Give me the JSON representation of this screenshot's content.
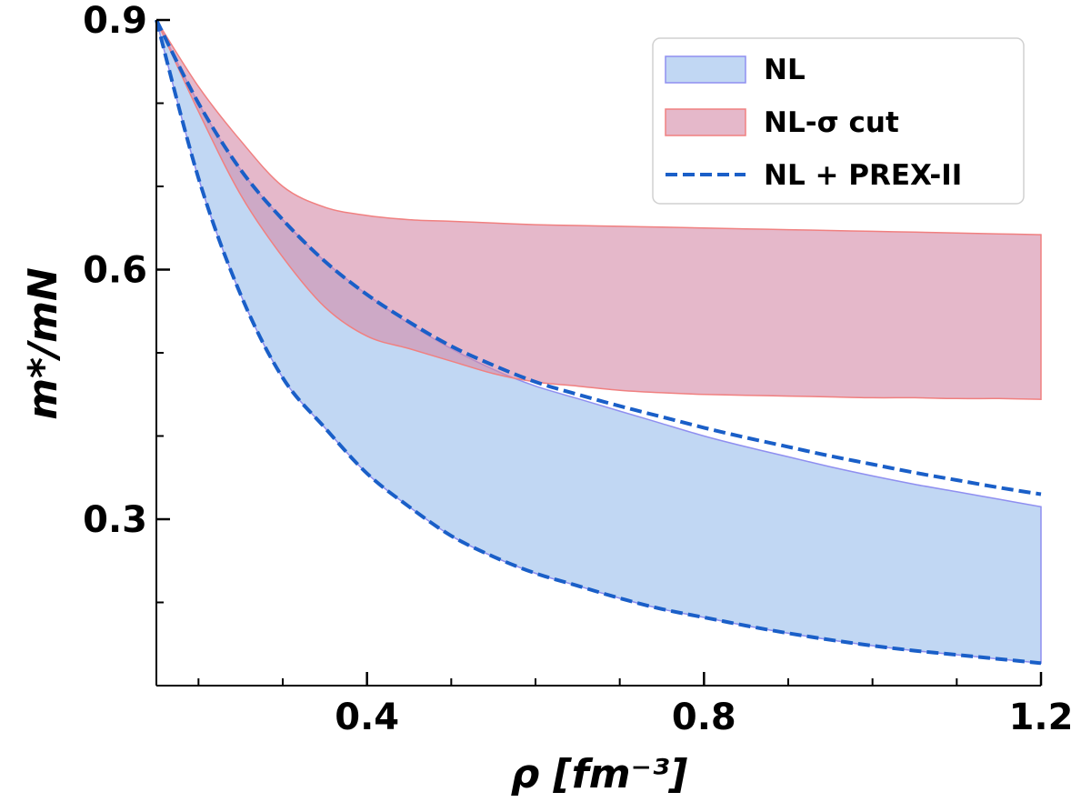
{
  "chart_data": {
    "type": "area",
    "title": "",
    "xlabel": "ρ [fm⁻³]",
    "ylabel": "m*/mN",
    "xlim": [
      0.15,
      1.2
    ],
    "ylim": [
      0.1,
      0.9
    ],
    "x_ticks": [
      0.4,
      0.8,
      1.2
    ],
    "x_tick_labels": [
      "0.4",
      "0.8",
      "1.2"
    ],
    "x_minor_ticks": [
      0.2,
      0.3,
      0.5,
      0.6,
      0.7,
      0.9,
      1.0,
      1.1
    ],
    "y_ticks": [
      0.3,
      0.6,
      0.9
    ],
    "y_tick_labels": [
      "0.3",
      "0.6",
      "0.9"
    ],
    "y_minor_ticks": [
      0.2,
      0.4,
      0.5,
      0.7,
      0.8
    ],
    "legend_position": "top-right",
    "series": [
      {
        "name": "NL",
        "kind": "band",
        "color": "#9bbfec",
        "edge_color": "#8f8ff0",
        "x": [
          0.15,
          0.2,
          0.25,
          0.3,
          0.35,
          0.4,
          0.45,
          0.5,
          0.55,
          0.6,
          0.65,
          0.7,
          0.75,
          0.8,
          0.85,
          0.9,
          0.95,
          1.0,
          1.05,
          1.1,
          1.15,
          1.2
        ],
        "lower": [
          0.9,
          0.71,
          0.57,
          0.47,
          0.41,
          0.355,
          0.315,
          0.28,
          0.255,
          0.235,
          0.22,
          0.205,
          0.192,
          0.182,
          0.172,
          0.163,
          0.155,
          0.148,
          0.142,
          0.137,
          0.132,
          0.127
        ],
        "upper": [
          0.9,
          0.8,
          0.72,
          0.66,
          0.61,
          0.57,
          0.535,
          0.505,
          0.48,
          0.46,
          0.445,
          0.43,
          0.415,
          0.4,
          0.387,
          0.375,
          0.363,
          0.352,
          0.342,
          0.333,
          0.324,
          0.315
        ]
      },
      {
        "name": "NL-σ cut",
        "kind": "band",
        "color": "#d58daa",
        "edge_color": "#f08080",
        "x": [
          0.15,
          0.2,
          0.25,
          0.3,
          0.35,
          0.4,
          0.45,
          0.5,
          0.55,
          0.6,
          0.65,
          0.7,
          0.75,
          0.8,
          0.85,
          0.9,
          0.95,
          1.0,
          1.05,
          1.1,
          1.15,
          1.2
        ],
        "lower": [
          0.9,
          0.79,
          0.69,
          0.615,
          0.555,
          0.52,
          0.505,
          0.49,
          0.475,
          0.465,
          0.46,
          0.455,
          0.452,
          0.45,
          0.449,
          0.448,
          0.447,
          0.446,
          0.446,
          0.445,
          0.445,
          0.444
        ],
        "upper": [
          0.9,
          0.82,
          0.755,
          0.7,
          0.675,
          0.665,
          0.66,
          0.658,
          0.656,
          0.654,
          0.653,
          0.652,
          0.651,
          0.65,
          0.649,
          0.648,
          0.647,
          0.646,
          0.645,
          0.644,
          0.643,
          0.642
        ]
      },
      {
        "name": "NL + PREX-II",
        "kind": "dashed-bounds",
        "color": "#1a5fc8",
        "x": [
          0.15,
          0.2,
          0.25,
          0.3,
          0.35,
          0.4,
          0.45,
          0.5,
          0.55,
          0.6,
          0.65,
          0.7,
          0.75,
          0.8,
          0.85,
          0.9,
          0.95,
          1.0,
          1.05,
          1.1,
          1.15,
          1.2
        ],
        "lower": [
          0.9,
          0.71,
          0.57,
          0.47,
          0.41,
          0.355,
          0.315,
          0.28,
          0.255,
          0.235,
          0.22,
          0.205,
          0.192,
          0.182,
          0.172,
          0.163,
          0.155,
          0.148,
          0.142,
          0.137,
          0.132,
          0.127
        ],
        "upper": [
          0.9,
          0.8,
          0.72,
          0.66,
          0.61,
          0.57,
          0.537,
          0.508,
          0.485,
          0.465,
          0.45,
          0.436,
          0.423,
          0.41,
          0.398,
          0.387,
          0.376,
          0.366,
          0.356,
          0.347,
          0.338,
          0.33
        ]
      }
    ]
  }
}
